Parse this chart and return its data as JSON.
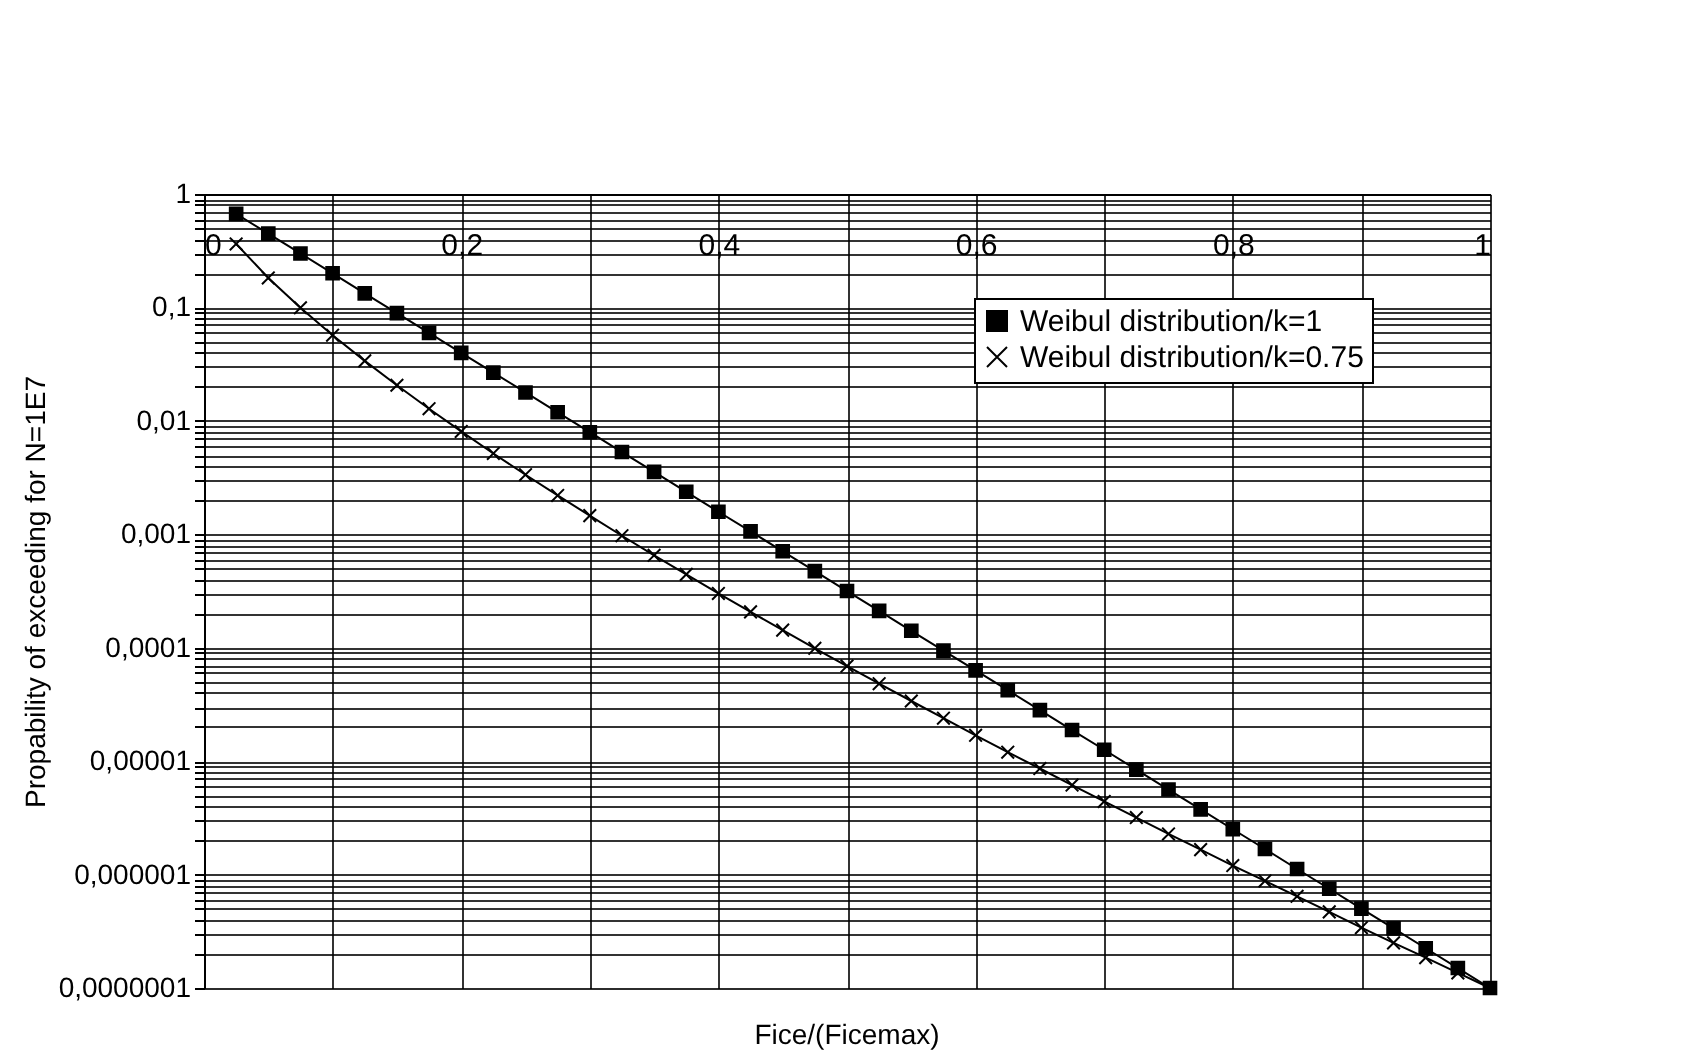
{
  "chart_data": {
    "type": "line",
    "xlabel": "Fice/(Ficemax)",
    "ylabel": "Propability of exceeding for N=1E7",
    "x": [
      0.025,
      0.05,
      0.075,
      0.1,
      0.125,
      0.15,
      0.175,
      0.2,
      0.225,
      0.25,
      0.275,
      0.3,
      0.325,
      0.35,
      0.375,
      0.4,
      0.425,
      0.45,
      0.475,
      0.5,
      0.525,
      0.55,
      0.575,
      0.6,
      0.625,
      0.65,
      0.675,
      0.7,
      0.725,
      0.75,
      0.775,
      0.8,
      0.825,
      0.85,
      0.875,
      0.9,
      0.925,
      0.95,
      0.975,
      1
    ],
    "series": [
      {
        "name": "Weibul distribution/k=1",
        "color": "#000000",
        "marker": "square",
        "values": [
          0.668,
          0.447,
          0.299,
          0.2,
          0.133,
          0.0891,
          0.0596,
          0.0398,
          0.0266,
          0.0178,
          0.0119,
          0.00794,
          0.00531,
          0.00355,
          0.00237,
          0.00158,
          0.00106,
          0.000708,
          0.000473,
          0.000316,
          0.000211,
          0.000141,
          9.44e-05,
          6.31e-05,
          4.22e-05,
          2.82e-05,
          1.88e-05,
          1.26e-05,
          8.41e-06,
          5.62e-06,
          3.76e-06,
          2.51e-06,
          1.68e-06,
          1.12e-06,
          7.5e-07,
          5.01e-07,
          3.35e-07,
          2.24e-07,
          1.5e-07,
          1e-07
        ]
      },
      {
        "name": "Weibul distribution/k=0.75",
        "color": "#000000",
        "marker": "cross",
        "values": [
          0.363,
          0.182,
          0.0993,
          0.0569,
          0.0338,
          0.0206,
          0.0128,
          0.00807,
          0.00516,
          0.00335,
          0.0022,
          0.00146,
          0.000971,
          0.000653,
          0.000443,
          0.000301,
          0.000207,
          0.000143,
          9.89e-05,
          6.89e-05,
          4.82e-05,
          3.39e-05,
          2.39e-05,
          1.69e-05,
          1.2e-05,
          8.61e-06,
          6.15e-06,
          4.41e-06,
          3.18e-06,
          2.28e-06,
          1.66e-06,
          1.2e-06,
          8.79e-07,
          6.43e-07,
          4.69e-07,
          3.4e-07,
          2.5e-07,
          1.85e-07,
          1.36e-07,
          1e-07
        ]
      }
    ],
    "xlim": [
      0,
      1
    ],
    "xticks": [
      0,
      {
        "value": 0.1,
        "label": null
      },
      {
        "value": 0.2,
        "label": "0,2"
      },
      {
        "value": 0.3,
        "label": null
      },
      {
        "value": 0.4,
        "label": "0,4"
      },
      {
        "value": 0.5,
        "label": null
      },
      {
        "value": 0.6,
        "label": "0,6"
      },
      {
        "value": 0.7,
        "label": null
      },
      {
        "value": 0.8,
        "label": "0,8"
      },
      {
        "value": 0.9,
        "label": null
      },
      1
    ],
    "ylim": [
      1e-07,
      1
    ],
    "yticks": [
      1,
      {
        "value": 0.1,
        "label": "0,1"
      },
      {
        "value": 0.01,
        "label": "0,01"
      },
      {
        "value": 0.001,
        "label": "0,001"
      },
      {
        "value": 0.0001,
        "label": "0,0001"
      },
      {
        "value": 1e-05,
        "label": "0,00001"
      },
      {
        "value": 1e-06,
        "label": "0,000001"
      },
      {
        "value": 1e-07,
        "label": "0,0000001"
      },
      {
        "value": 0.2,
        "label": null
      },
      {
        "value": 0.3,
        "label": null
      },
      {
        "value": 0.4,
        "label": null
      },
      {
        "value": 0.5,
        "label": null
      },
      {
        "value": 0.6,
        "label": null
      },
      {
        "value": 0.7,
        "label": null
      },
      {
        "value": 0.8,
        "label": null
      },
      {
        "value": 0.9,
        "label": null
      },
      {
        "value": 0.02,
        "label": null
      },
      {
        "value": 0.03,
        "label": null
      },
      {
        "value": 0.04,
        "label": null
      },
      {
        "value": 0.05,
        "label": null
      },
      {
        "value": 0.06,
        "label": null
      },
      {
        "value": 0.07,
        "label": null
      },
      {
        "value": 0.08,
        "label": null
      },
      {
        "value": 0.09,
        "label": null
      },
      {
        "value": 0.002,
        "label": null
      },
      {
        "value": 0.003,
        "label": null
      },
      {
        "value": 0.004,
        "label": null
      },
      {
        "value": 0.005,
        "label": null
      },
      {
        "value": 0.006,
        "label": null
      },
      {
        "value": 0.007,
        "label": null
      },
      {
        "value": 0.008,
        "label": null
      },
      {
        "value": 0.009,
        "label": null
      },
      {
        "value": 0.0002,
        "label": null
      },
      {
        "value": 0.0003,
        "label": null
      },
      {
        "value": 0.0004,
        "label": null
      },
      {
        "value": 0.0005,
        "label": null
      },
      {
        "value": 0.0006,
        "label": null
      },
      {
        "value": 0.0007,
        "label": null
      },
      {
        "value": 0.0008,
        "label": null
      },
      {
        "value": 0.0009,
        "label": null
      },
      {
        "value": 2e-05,
        "label": null
      },
      {
        "value": 3e-05,
        "label": null
      },
      {
        "value": 4e-05,
        "label": null
      },
      {
        "value": 5e-05,
        "label": null
      },
      {
        "value": 6e-05,
        "label": null
      },
      {
        "value": 7e-05,
        "label": null
      },
      {
        "value": 8e-05,
        "label": null
      },
      {
        "value": 9e-05,
        "label": null
      },
      {
        "value": 2e-06,
        "label": null
      },
      {
        "value": 3e-06,
        "label": null
      },
      {
        "value": 4e-06,
        "label": null
      },
      {
        "value": 5e-06,
        "label": null
      },
      {
        "value": 6e-06,
        "label": null
      },
      {
        "value": 7e-06,
        "label": null
      },
      {
        "value": 8e-06,
        "label": null
      },
      {
        "value": 9e-06,
        "label": null
      },
      {
        "value": 2e-07,
        "label": null
      },
      {
        "value": 3e-07,
        "label": null
      },
      {
        "value": 4e-07,
        "label": null
      },
      {
        "value": 5e-07,
        "label": null
      },
      {
        "value": 6e-07,
        "label": null
      },
      {
        "value": 7e-07,
        "label": null
      },
      {
        "value": 8e-07,
        "label": null
      },
      {
        "value": 9e-07,
        "label": null
      }
    ],
    "log": "y",
    "grid": true,
    "legend": "top right",
    "line_style": "solid"
  }
}
